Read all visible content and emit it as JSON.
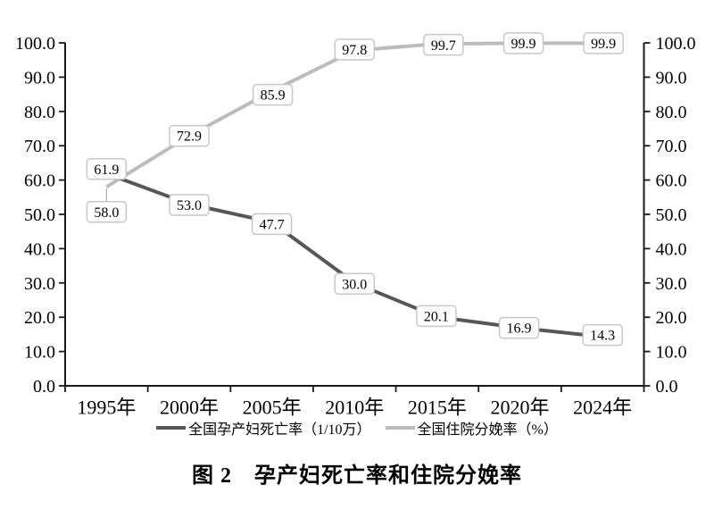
{
  "figure": {
    "caption": "图 2　孕产妇死亡率和住院分娩率"
  },
  "chart_data": {
    "type": "line",
    "title": "图 2　孕产妇死亡率和住院分娩率",
    "categories": [
      "1995年",
      "2000年",
      "2005年",
      "2010年",
      "2015年",
      "2020年",
      "2024年"
    ],
    "series": [
      {
        "key": "maternal-mortality-rate",
        "name": "全国孕产妇死亡率（1/10万）",
        "unit": "1/10万",
        "color": "#575757",
        "values": [
          61.9,
          53.0,
          47.7,
          30.0,
          20.1,
          16.9,
          14.3
        ],
        "data_labels": [
          "61.9",
          "53.0",
          "47.7",
          "30.0",
          "20.1",
          "16.9",
          "14.3"
        ],
        "label_offsets": [
          [
            0,
            -5
          ],
          [
            0,
            1
          ],
          [
            0,
            2
          ],
          [
            0,
            1
          ],
          [
            -1,
            -1
          ],
          [
            -1,
            0
          ],
          [
            0,
            -2
          ]
        ],
        "leader_line_points": []
      },
      {
        "key": "hospital-delivery-rate",
        "name": "全国住院分娩率（%）",
        "unit": "%",
        "color": "#bcbcbc",
        "values": [
          58.0,
          72.9,
          85.9,
          97.8,
          99.7,
          99.9,
          99.9
        ],
        "data_labels": [
          "58.0",
          "72.9",
          "85.9",
          "97.8",
          "99.7",
          "99.9",
          "99.9"
        ],
        "label_offsets": [
          [
            0,
            28
          ],
          [
            0,
            0
          ],
          [
            1,
            4
          ],
          [
            0,
            -1
          ],
          [
            7,
            1
          ],
          [
            4,
            0
          ],
          [
            1,
            0
          ]
        ],
        "leader_line_points": [
          0
        ]
      }
    ],
    "x_axis": {
      "tick_labels": [
        "1995年",
        "2000年",
        "2005年",
        "2010年",
        "2015年",
        "2020年",
        "2024年"
      ]
    },
    "y_axis": {
      "min": 0,
      "max": 100,
      "step": 10,
      "tick_labels": [
        "0.0",
        "10.0",
        "20.0",
        "30.0",
        "40.0",
        "50.0",
        "60.0",
        "70.0",
        "80.0",
        "90.0",
        "100.0"
      ],
      "sides": [
        "left",
        "right"
      ]
    },
    "grid": false,
    "legend_position": "bottom",
    "data_label_box": {
      "fill": "#ffffff",
      "border": "#c8c8c8"
    },
    "axis_color": "#1a1a1a"
  }
}
